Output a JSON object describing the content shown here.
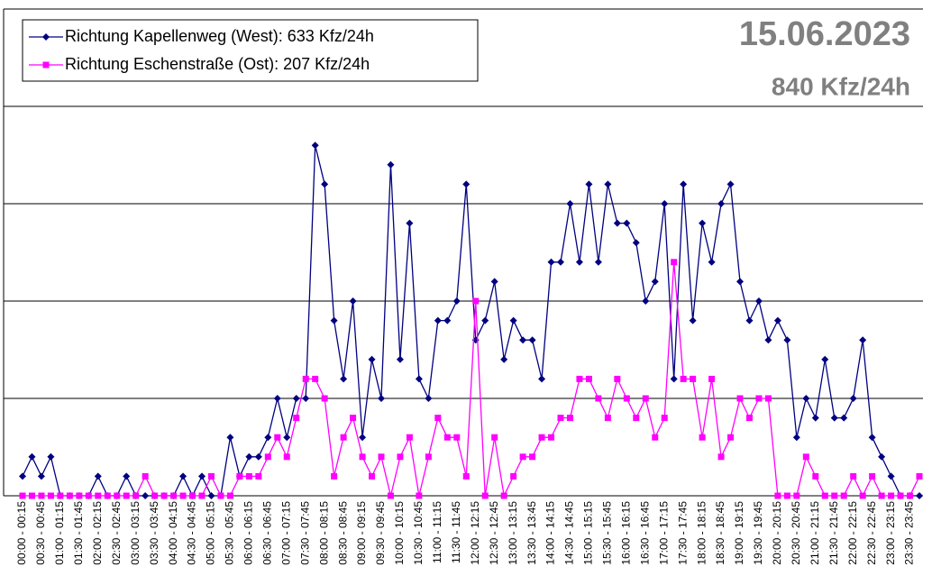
{
  "chart_data": {
    "type": "line",
    "title": "15.06.2023",
    "subtitle": "840 Kfz/24h",
    "categories": [
      "00:00 - 00:15",
      null,
      "00:30 - 00:45",
      null,
      "01:00 - 01:15",
      null,
      "01:30 - 01:45",
      null,
      "02:00 - 02:15",
      null,
      "02:30 - 02:45",
      null,
      "03:00 - 03:15",
      null,
      "03:30 - 03:45",
      null,
      "04:00 - 04:15",
      null,
      "04:30 - 04:45",
      null,
      "05:00 - 05:15",
      null,
      "05:30 - 05:45",
      null,
      "06:00 - 06:15",
      null,
      "06:30 - 06:45",
      null,
      "07:00 - 07:15",
      null,
      "07:30 - 07:45",
      null,
      "08:00 - 08:15",
      null,
      "08:30 - 08:45",
      null,
      "09:00 - 09:15",
      null,
      "09:30 - 09:45",
      null,
      "10:00 - 10:15",
      null,
      "10:30 - 10:45",
      null,
      "11:00 - 11:15",
      null,
      "11:30 - 11:45",
      null,
      "12:00 - 12:15",
      null,
      "12:30 - 12:45",
      null,
      "13:00 - 13:15",
      null,
      "13:30 - 13:45",
      null,
      "14:00 - 14:15",
      null,
      "14:30 - 14:45",
      null,
      "15:00 - 15:15",
      null,
      "15:30 - 15:45",
      null,
      "16:00 - 16:15",
      null,
      "16:30 - 16:45",
      null,
      "17:00 - 17:15",
      null,
      "17:30 - 17:45",
      null,
      "18:00 - 18:15",
      null,
      "18:30 - 18:45",
      null,
      "19:00 - 19:15",
      null,
      "19:30 - 19:45",
      null,
      "20:00 - 20:15",
      null,
      "20:30 - 20:45",
      null,
      "21:00 - 21:15",
      null,
      "21:30 - 21:45",
      null,
      "22:00 - 22:15",
      null,
      "22:30 - 22:45",
      null,
      "23:00 - 23:15",
      null,
      "23:30 - 23:45",
      null
    ],
    "series": [
      {
        "name": "Richtung Kapellenweg (West): 633 Kfz/24h",
        "color": "#000080",
        "marker": "diamond",
        "values": [
          1,
          2,
          1,
          2,
          0,
          0,
          0,
          0,
          1,
          0,
          0,
          1,
          0,
          0,
          0,
          0,
          0,
          1,
          0,
          1,
          0,
          0,
          3,
          1,
          2,
          2,
          3,
          5,
          3,
          5,
          5,
          18,
          16,
          9,
          6,
          10,
          3,
          7,
          5,
          17,
          7,
          14,
          6,
          5,
          9,
          9,
          10,
          16,
          8,
          9,
          11,
          7,
          9,
          8,
          8,
          6,
          12,
          12,
          15,
          12,
          16,
          12,
          16,
          14,
          14,
          13,
          10,
          11,
          15,
          6,
          16,
          9,
          14,
          12,
          15,
          16,
          11,
          9,
          10,
          8,
          9,
          8,
          3,
          5,
          4,
          7,
          4,
          4,
          5,
          8,
          3,
          2,
          1,
          0,
          0,
          0
        ]
      },
      {
        "name": "Richtung Eschenstraße (Ost): 207 Kfz/24h",
        "color": "#ff00ff",
        "marker": "square",
        "values": [
          0,
          0,
          0,
          0,
          0,
          0,
          0,
          0,
          0,
          0,
          0,
          0,
          0,
          1,
          0,
          0,
          0,
          0,
          0,
          0,
          1,
          0,
          0,
          1,
          1,
          1,
          2,
          3,
          2,
          4,
          6,
          6,
          5,
          1,
          3,
          4,
          2,
          1,
          2,
          0,
          2,
          3,
          0,
          2,
          4,
          3,
          3,
          1,
          10,
          0,
          3,
          0,
          1,
          2,
          2,
          3,
          3,
          4,
          4,
          6,
          6,
          5,
          4,
          6,
          5,
          4,
          5,
          3,
          4,
          12,
          6,
          6,
          3,
          6,
          2,
          3,
          5,
          4,
          5,
          5,
          0,
          0,
          0,
          2,
          1,
          0,
          0,
          0,
          1,
          0,
          1,
          0,
          0,
          0,
          0,
          1
        ]
      }
    ],
    "ylim": [
      0,
      25
    ],
    "yticks": [
      0,
      5,
      10,
      15,
      20,
      25
    ],
    "grid": true,
    "legend": "top-left"
  }
}
